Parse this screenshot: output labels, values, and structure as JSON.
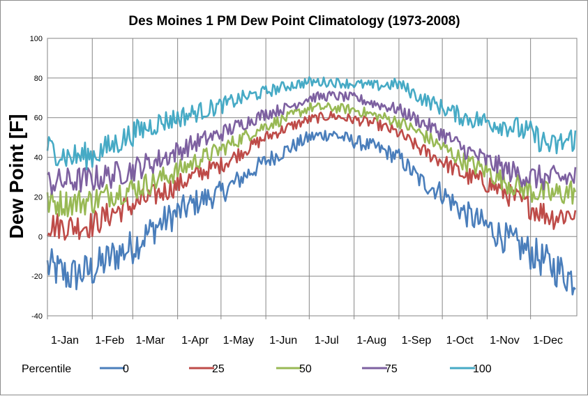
{
  "chart_data": {
    "type": "line",
    "title": "Des Moines 1 PM Dew Point Climatology (1973-2008)",
    "xlabel": "",
    "ylabel": "Dew  Point [F]",
    "ylim": [
      -40,
      100
    ],
    "yticks": [
      -40,
      -20,
      0,
      20,
      40,
      60,
      80,
      100
    ],
    "xlim": [
      0,
      366
    ],
    "x_ticks": [
      {
        "label": "1-Jan",
        "day": 0
      },
      {
        "label": "1-Feb",
        "day": 31
      },
      {
        "label": "1-Mar",
        "day": 59
      },
      {
        "label": "1-Apr",
        "day": 90
      },
      {
        "label": "1-May",
        "day": 120
      },
      {
        "label": "1-Jun",
        "day": 151
      },
      {
        "label": "1-Jul",
        "day": 181
      },
      {
        "label": "1-Aug",
        "day": 212
      },
      {
        "label": "1-Sep",
        "day": 243
      },
      {
        "label": "1-Oct",
        "day": 273
      },
      {
        "label": "1-Nov",
        "day": 304
      },
      {
        "label": "1-Dec",
        "day": 334
      }
    ],
    "grid": true,
    "legend": {
      "title": "Percentile",
      "position": "bottom"
    },
    "series_anchor_days": [
      0,
      15,
      31,
      45,
      59,
      75,
      90,
      105,
      120,
      135,
      151,
      166,
      181,
      196,
      212,
      227,
      243,
      258,
      273,
      288,
      304,
      319,
      334,
      349,
      365
    ],
    "series": [
      {
        "name": "0",
        "color": "#4a7ebb",
        "values": [
          -15,
          -20,
          -17,
          -10,
          -5,
          5,
          12,
          18,
          22,
          30,
          38,
          44,
          50,
          52,
          48,
          45,
          40,
          28,
          22,
          12,
          5,
          -2,
          -8,
          -15,
          -22
        ]
      },
      {
        "name": "25",
        "color": "#be4b48",
        "values": [
          6,
          5,
          6,
          12,
          16,
          21,
          26,
          32,
          36,
          43,
          50,
          55,
          59,
          61,
          59,
          57,
          52,
          44,
          38,
          31,
          27,
          21,
          15,
          10,
          12
        ]
      },
      {
        "name": "50",
        "color": "#98b954",
        "values": [
          17,
          17,
          18,
          22,
          24,
          28,
          33,
          39,
          44,
          50,
          56,
          60,
          65,
          65,
          64,
          61,
          58,
          52,
          45,
          38,
          33,
          27,
          23,
          21,
          23
        ]
      },
      {
        "name": "75",
        "color": "#7d60a0",
        "values": [
          27,
          28,
          29,
          31,
          34,
          38,
          43,
          48,
          52,
          57,
          62,
          65,
          70,
          71,
          70,
          67,
          64,
          58,
          52,
          44,
          38,
          33,
          30,
          29,
          30
        ]
      },
      {
        "name": "100",
        "color": "#46aac5",
        "values": [
          45,
          40,
          41,
          46,
          52,
          57,
          60,
          63,
          66,
          70,
          73,
          76,
          78,
          78,
          77,
          76,
          77,
          70,
          65,
          60,
          58,
          56,
          52,
          45,
          50
        ]
      }
    ]
  }
}
